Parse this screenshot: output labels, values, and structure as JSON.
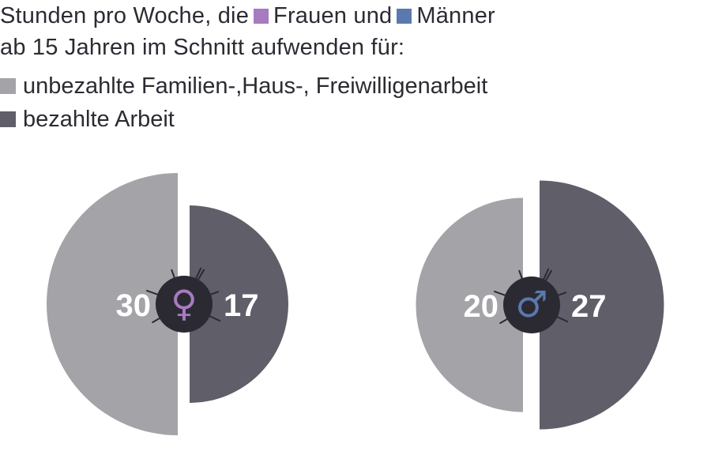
{
  "header": {
    "line1_prefix": "Stunden pro Woche, die",
    "women_label": "Frauen und",
    "men_label": "Männer",
    "line2": "ab 15 Jahren im Schnitt aufwenden für:"
  },
  "colors": {
    "women": "#a77bc0",
    "men": "#5a79ad",
    "unpaid": "#a3a3a8",
    "paid": "#5f5e69",
    "center": "#2b2a33",
    "value_text": "#ffffff"
  },
  "chart_data": {
    "type": "pie",
    "legend": [
      {
        "key": "unpaid",
        "label": "unbezahlte Familien-,Haus-, Freiwilligenarbeit"
      },
      {
        "key": "paid",
        "label": "bezahlte Arbeit"
      }
    ],
    "groups": [
      {
        "name": "Frauen",
        "icon": "female-symbol-icon",
        "symbol": "♀",
        "unpaid": 30,
        "paid": 17
      },
      {
        "name": "Männer",
        "icon": "male-symbol-icon",
        "symbol": "♂",
        "unpaid": 20,
        "paid": 27
      }
    ],
    "unit": "Stunden pro Woche"
  }
}
